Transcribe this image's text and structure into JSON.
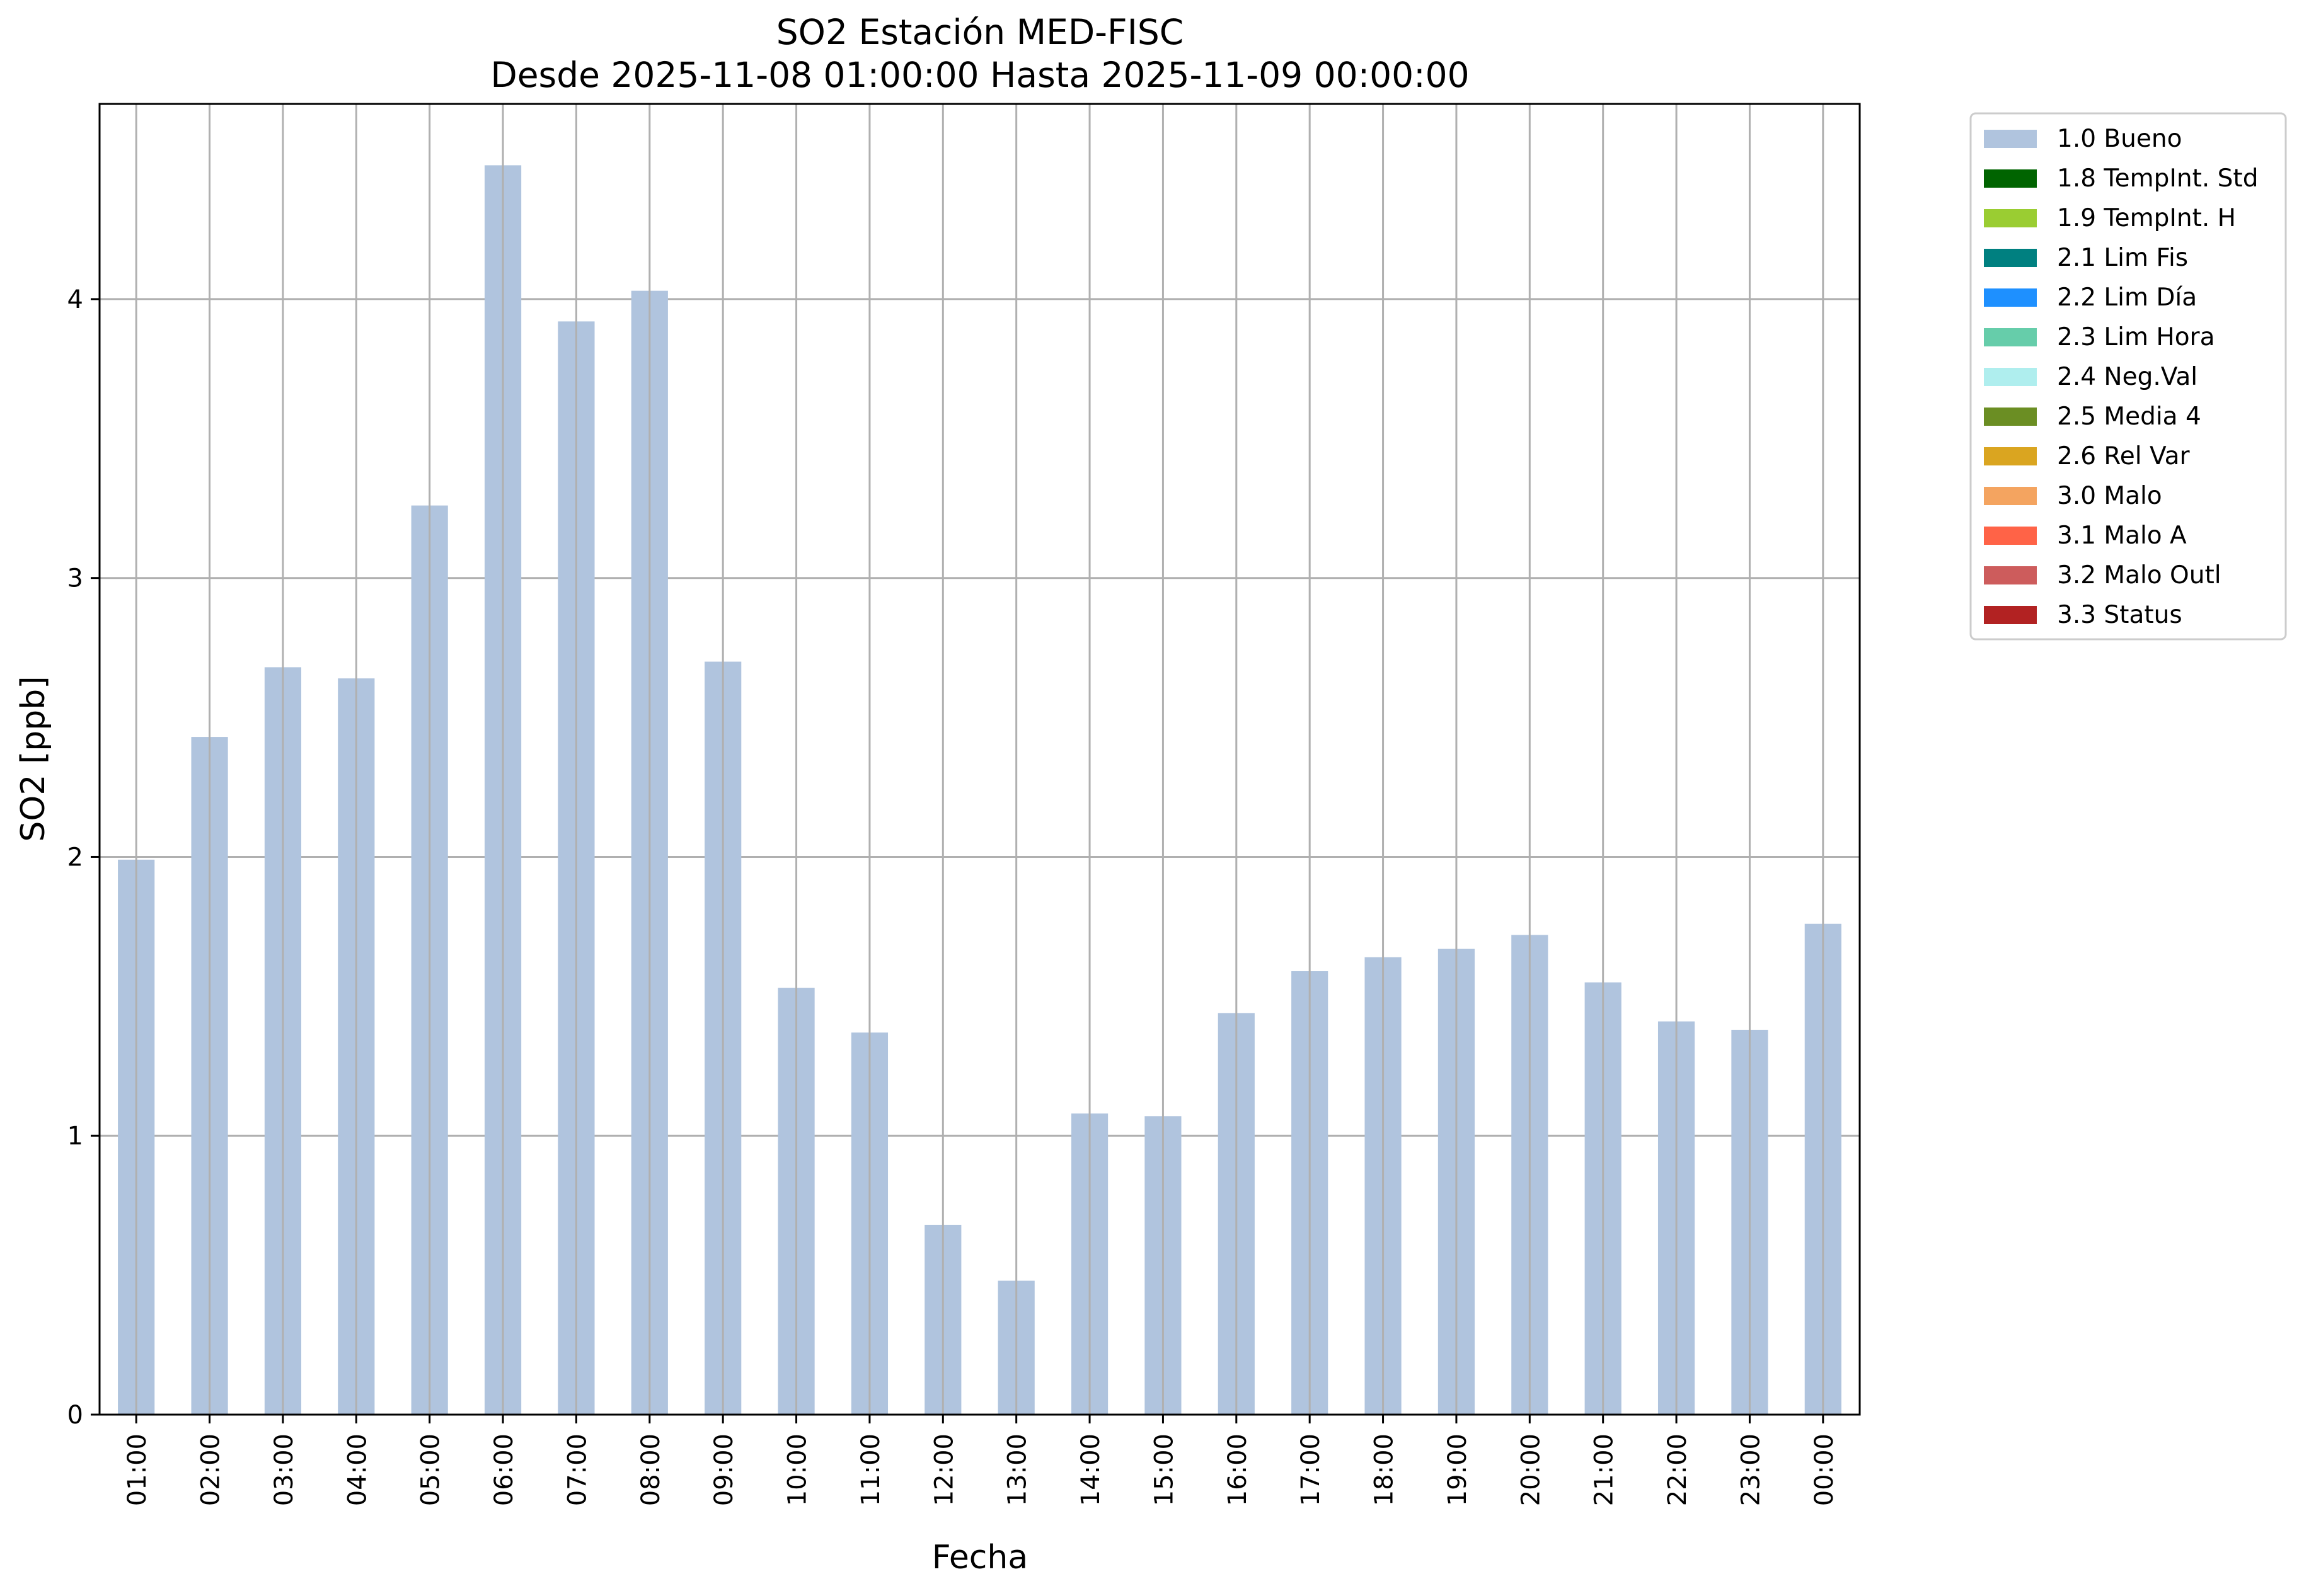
{
  "chart_data": {
    "type": "bar",
    "title": "SO2 Estación MED-FISC",
    "subtitle": "Desde 2025-11-08 01:00:00 Hasta 2025-11-09 00:00:00",
    "xlabel": "Fecha",
    "ylabel": "SO2 [ppb]",
    "ylim": [
      0,
      4.7
    ],
    "yticks": [
      0,
      1,
      2,
      3,
      4
    ],
    "grid": true,
    "legend_placement": "outside-right-top",
    "categories": [
      "01:00",
      "02:00",
      "03:00",
      "04:00",
      "05:00",
      "06:00",
      "07:00",
      "08:00",
      "09:00",
      "10:00",
      "11:00",
      "12:00",
      "13:00",
      "14:00",
      "15:00",
      "16:00",
      "17:00",
      "18:00",
      "19:00",
      "20:00",
      "21:00",
      "22:00",
      "23:00",
      "00:00"
    ],
    "series": [
      {
        "name": "1.0 Bueno",
        "color": "#b0c4de",
        "values": [
          1.99,
          2.43,
          2.68,
          2.64,
          3.26,
          4.48,
          3.92,
          4.03,
          2.7,
          1.53,
          1.37,
          0.68,
          0.48,
          1.08,
          1.07,
          1.44,
          1.59,
          1.64,
          1.67,
          1.72,
          1.55,
          1.41,
          1.38,
          1.76
        ]
      }
    ],
    "legend": [
      {
        "label": "1.0 Bueno",
        "color": "#b0c4de"
      },
      {
        "label": "1.8 TempInt. Std",
        "color": "#006400"
      },
      {
        "label": "1.9 TempInt. H",
        "color": "#9acd32"
      },
      {
        "label": "2.1 Lim Fis",
        "color": "#008080"
      },
      {
        "label": "2.2 Lim Día",
        "color": "#1e90ff"
      },
      {
        "label": "2.3 Lim Hora",
        "color": "#66cdaa"
      },
      {
        "label": "2.4 Neg.Val",
        "color": "#afeeee"
      },
      {
        "label": "2.5 Media 4",
        "color": "#6b8e23"
      },
      {
        "label": "2.6 Rel Var",
        "color": "#daa520"
      },
      {
        "label": "3.0 Malo",
        "color": "#f4a460"
      },
      {
        "label": "3.1 Malo A",
        "color": "#ff6347"
      },
      {
        "label": "3.2 Malo Outl",
        "color": "#cd5c5c"
      },
      {
        "label": "3.3 Status",
        "color": "#b22222"
      }
    ]
  }
}
